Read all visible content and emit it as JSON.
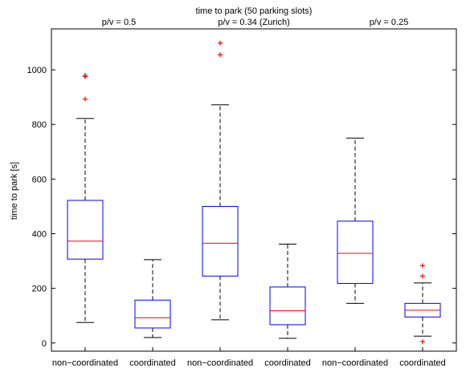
{
  "chart_data": {
    "type": "boxplot",
    "title": "time to park (50 parking slots)",
    "ylabel": "time to park [s]",
    "xlabel": "",
    "ylim": [
      -30,
      1150
    ],
    "yticks": [
      0,
      200,
      400,
      600,
      800,
      1000
    ],
    "grid": false,
    "groups": [
      {
        "label": "p/v = 0.5",
        "boxes": [
          0,
          1
        ]
      },
      {
        "label": "p/v = 0.34 (Zurich)",
        "boxes": [
          2,
          3
        ]
      },
      {
        "label": "p/v = 0.25",
        "boxes": [
          4,
          5
        ]
      }
    ],
    "boxes": [
      {
        "category": "non−coordinated",
        "whisker_low": 75,
        "q1": 307,
        "median": 373,
        "q3": 522,
        "whisker_high": 822,
        "outliers": [
          893,
          975,
          980
        ]
      },
      {
        "category": "coordinated",
        "whisker_low": 20,
        "q1": 55,
        "median": 92,
        "q3": 157,
        "whisker_high": 305,
        "outliers": []
      },
      {
        "category": "non−coordinated",
        "whisker_low": 85,
        "q1": 245,
        "median": 365,
        "q3": 500,
        "whisker_high": 872,
        "outliers": [
          1055,
          1098
        ]
      },
      {
        "category": "coordinated",
        "whisker_low": 17,
        "q1": 67,
        "median": 118,
        "q3": 205,
        "whisker_high": 362,
        "outliers": []
      },
      {
        "category": "non−coordinated",
        "whisker_low": 145,
        "q1": 218,
        "median": 328,
        "q3": 446,
        "whisker_high": 750,
        "outliers": []
      },
      {
        "category": "coordinated",
        "whisker_low": 25,
        "q1": 95,
        "median": 120,
        "q3": 145,
        "whisker_high": 220,
        "outliers": [
          5,
          245,
          283
        ]
      }
    ],
    "colors": {
      "box": "#0000ff",
      "median": "#ff0000",
      "whisker": "#000000",
      "outlier": "#ff0000"
    }
  }
}
